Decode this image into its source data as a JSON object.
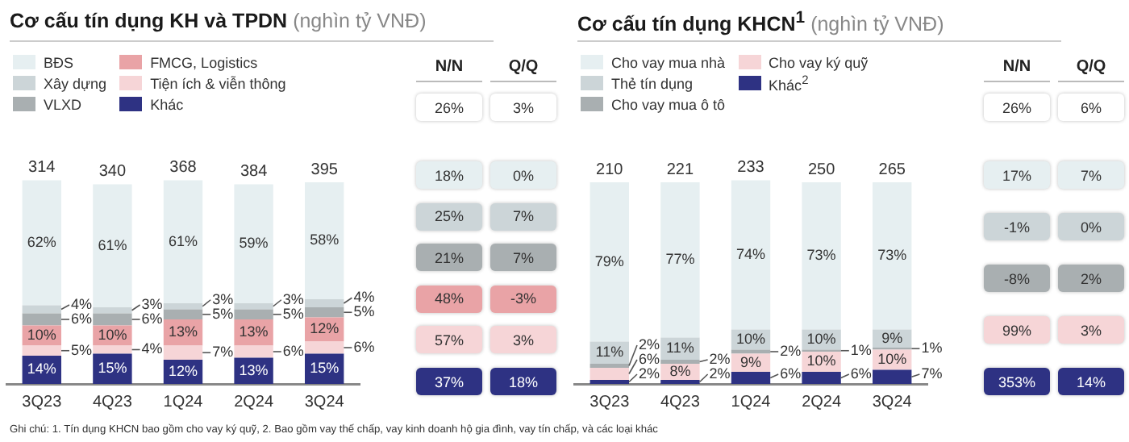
{
  "chart_data": [
    {
      "type": "bar",
      "title": "Cơ cấu tín dụng KH và TPDN",
      "subtitle": "(nghìn tỷ VNĐ)",
      "categories": [
        "3Q23",
        "4Q23",
        "1Q24",
        "2Q24",
        "3Q24"
      ],
      "stacked": true,
      "tick_labels": "x",
      "grid": false,
      "legend": "top left",
      "series": [
        {
          "name": "Khác",
          "color": "#2e3283",
          "values": [
            14,
            15,
            12,
            13,
            15
          ],
          "value_labels": [
            "14%",
            "15%",
            "12%",
            "13%",
            "15%"
          ]
        },
        {
          "name": "Tiện ích & viễn thông",
          "color": "#f6d5d7",
          "values": [
            5,
            4,
            7,
            6,
            6
          ],
          "value_labels": [
            "5%",
            "4%",
            "7%",
            "6%",
            "6%"
          ]
        },
        {
          "name": "FMCG,  Logistics",
          "color": "#e9a3a6",
          "values": [
            10,
            10,
            13,
            13,
            12
          ],
          "value_labels": [
            "10%",
            "10%",
            "13%",
            "13%",
            "12%"
          ]
        },
        {
          "name": "VLXD",
          "color": "#a9afb1",
          "values": [
            6,
            6,
            5,
            5,
            5
          ],
          "value_labels": [
            "6%",
            "6%",
            "5%",
            "5%",
            "5%"
          ]
        },
        {
          "name": "Xây dựng",
          "color": "#ccd5d8",
          "values": [
            4,
            3,
            3,
            3,
            4
          ],
          "value_labels": [
            "4%",
            "3%",
            "3%",
            "3%",
            "4%"
          ]
        },
        {
          "name": "BĐS",
          "color": "#e6eff1",
          "values": [
            62,
            61,
            61,
            59,
            58
          ],
          "value_labels": [
            "62%",
            "61%",
            "61%",
            "59%",
            "58%"
          ]
        }
      ],
      "annotations": [
        "N/N",
        "Q/Q",
        "26%",
        "3%",
        "18%",
        "0%",
        "25%",
        "7%",
        "21%",
        "7%",
        "48%",
        "-3%",
        "57%",
        "3%",
        "37%",
        "18%",
        "Ghi chú: 1. Tín dụng KHCN bao gồm cho vay ký quỹ, 2. Bao gồm vay thế chấp, vay kinh doanh hộ gia đình, vay tín chấp, và các loại khác",
        {
          "text": "314",
          "x": "3Q23",
          "y": 101
        },
        {
          "text": "340",
          "x": "4Q23",
          "y": 99
        },
        {
          "text": "368",
          "x": "1Q24",
          "y": 101
        },
        {
          "text": "384",
          "x": "2Q24",
          "y": 99
        },
        {
          "text": "395",
          "x": "3Q24",
          "y": 100
        }
      ]
    },
    {
      "type": "bar",
      "title": "Cơ cấu tín dụng KHCN$^{1}$",
      "subtitle": "(nghìn tỷ VNĐ)",
      "categories": [
        "3Q23",
        "4Q23",
        "1Q24",
        "2Q24",
        "3Q24"
      ],
      "stacked": true,
      "tick_labels": "x",
      "grid": false,
      "legend": "top left",
      "series": [
        {
          "name": "Khác$^{2}$",
          "color": "#2e3283",
          "values": [
            2,
            2,
            6,
            6,
            7
          ],
          "value_labels": [
            "2%",
            "2%",
            "6%",
            "6%",
            "7%"
          ]
        },
        {
          "name": "Cho vay ký quỹ",
          "color": "#f6d5d7",
          "values": [
            6,
            8,
            9,
            10,
            10
          ],
          "value_labels": [
            "6%",
            "8%",
            "9%",
            "10%",
            "10%"
          ]
        },
        {
          "name": "Cho vay mua ô tô",
          "color": "#a9afb1",
          "values": [
            2,
            2,
            2,
            1,
            1
          ],
          "value_labels": [
            "2%",
            "2%",
            "2%",
            "1%",
            "1%"
          ]
        },
        {
          "name": "Thẻ tín dụng",
          "color": "#ccd5d8",
          "values": [
            11,
            11,
            10,
            10,
            9
          ],
          "value_labels": [
            "11%",
            "11%",
            "10%",
            "10%",
            "9%"
          ]
        },
        {
          "name": "Cho vay mua nhà",
          "color": "#e6eff1",
          "values": [
            79,
            77,
            74,
            73,
            73
          ],
          "value_labels": [
            "79%",
            "77%",
            "74%",
            "73%",
            "73%"
          ]
        }
      ],
      "annotations": [
        "N/N",
        "Q/Q",
        "26%",
        "6%",
        "17%",
        "7%",
        "-1%",
        "0%",
        "-8%",
        "2%",
        "99%",
        "3%",
        "353%",
        "14%",
        {
          "text": "210",
          "x": "3Q23",
          "y": 100
        },
        {
          "text": "221",
          "x": "4Q23",
          "y": 100
        },
        {
          "text": "233",
          "x": "1Q24",
          "y": 101
        },
        {
          "text": "250",
          "x": "2Q24",
          "y": 100
        },
        {
          "text": "265",
          "x": "3Q24",
          "y": 100
        }
      ]
    }
  ]
}
